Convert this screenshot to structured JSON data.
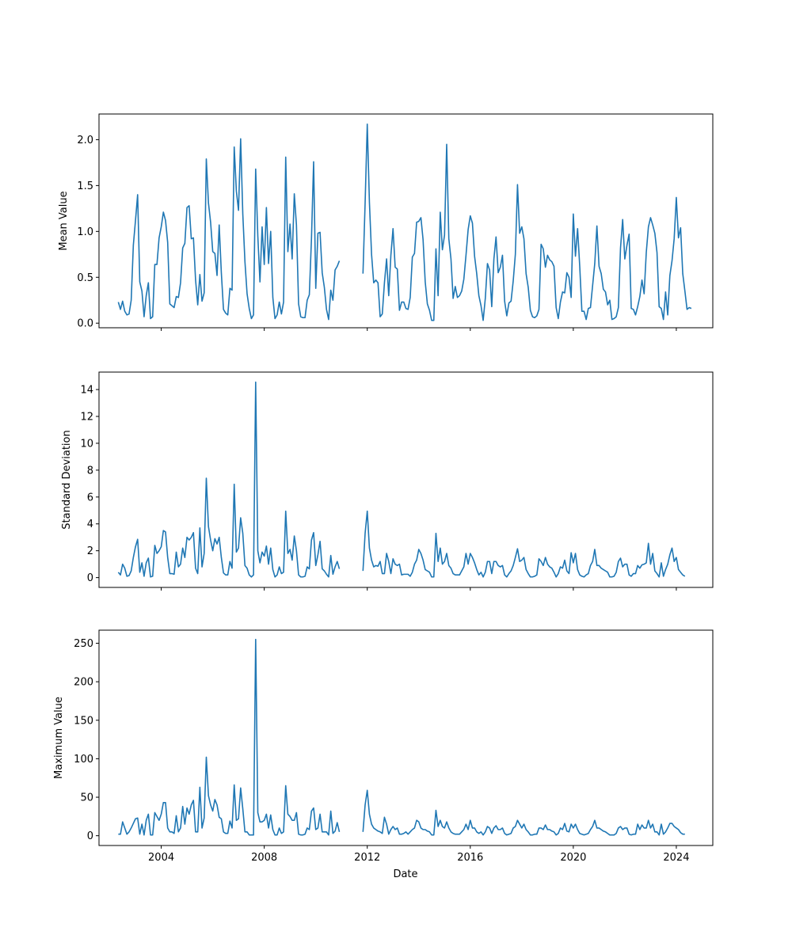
{
  "colors": {
    "line": "#1f77b4",
    "frame": "#000000",
    "background": "#ffffff"
  },
  "chart_data": [
    {
      "type": "line",
      "ylabel": "Mean Value",
      "xlabel": "",
      "xlim": [
        "2001-08-01",
        "2025-06-01"
      ],
      "ylim": [
        -0.05,
        2.28
      ],
      "yticks": [
        0.0,
        0.5,
        1.0,
        1.5,
        2.0
      ],
      "ytick_labels": [
        "0.0",
        "0.5",
        "1.0",
        "1.5",
        "2.0"
      ],
      "xticks": [
        "2004-01-01",
        "2008-01-01",
        "2012-01-01",
        "2016-01-01",
        "2020-01-01",
        "2024-01-01"
      ],
      "xtick_labels": [],
      "grid": false,
      "series": [
        {
          "x_start": "2002-05-01",
          "segments": [
            {
              "start_month": 0,
              "values": [
                0.23,
                0.15,
                0.24,
                0.13,
                0.09,
                0.1,
                0.25,
                0.85,
                1.12,
                1.4,
                0.45,
                0.35,
                0.07,
                0.3,
                0.44,
                0.05,
                0.07,
                0.64,
                0.64,
                0.93,
                1.05,
                1.21,
                1.12,
                0.88,
                0.21,
                0.19,
                0.17,
                0.29,
                0.28,
                0.44,
                0.82,
                0.87,
                1.26,
                1.28,
                0.92,
                0.93,
                0.47,
                0.2,
                0.53,
                0.24,
                0.33,
                1.79,
                1.31,
                1.1,
                0.78,
                0.76,
                0.52,
                1.07,
                0.55,
                0.15,
                0.11,
                0.09,
                0.38,
                0.36,
                1.92,
                1.44,
                1.23,
                2.01,
                1.19,
                0.67,
                0.32,
                0.16,
                0.05,
                0.09,
                1.68,
                0.95,
                0.45,
                1.05,
                0.64,
                1.26,
                0.65,
                1.0,
                0.28,
                0.05,
                0.09,
                0.23,
                0.1,
                0.23,
                1.81,
                0.78,
                1.08,
                0.7,
                1.41,
                1.07,
                0.21,
                0.07,
                0.06,
                0.06,
                0.25,
                0.31,
                0.92,
                1.76,
                0.38,
                0.98,
                0.99,
                0.55,
                0.39,
                0.15,
                0.04,
                0.36,
                0.25,
                0.58,
                0.62,
                0.68
              ]
            },
            {
              "start_month": 114,
              "values": [
                0.54,
                1.31,
                2.17,
                1.32,
                0.75,
                0.44,
                0.47,
                0.44,
                0.07,
                0.1,
                0.44,
                0.7,
                0.3,
                0.74,
                1.03,
                0.61,
                0.59,
                0.14,
                0.23,
                0.23,
                0.16,
                0.15,
                0.28,
                0.72,
                0.76,
                1.1,
                1.11,
                1.15,
                0.91,
                0.45,
                0.21,
                0.14,
                0.03,
                0.03,
                0.81,
                0.3,
                1.21,
                0.8,
                0.96,
                1.95,
                0.92,
                0.7,
                0.27,
                0.4,
                0.28,
                0.3,
                0.35,
                0.48,
                0.74,
                1.02,
                1.17,
                1.09,
                0.73,
                0.54,
                0.3,
                0.19,
                0.03,
                0.27,
                0.65,
                0.58,
                0.18,
                0.7,
                0.94,
                0.55,
                0.61,
                0.74,
                0.24,
                0.08,
                0.22,
                0.24,
                0.46,
                0.75,
                1.51,
                0.98,
                1.05,
                0.92,
                0.54,
                0.39,
                0.14,
                0.07,
                0.06,
                0.08,
                0.15,
                0.86,
                0.81,
                0.61,
                0.74,
                0.69,
                0.67,
                0.62,
                0.17,
                0.05,
                0.23,
                0.34,
                0.33,
                0.55,
                0.5,
                0.28,
                1.19,
                0.73,
                1.03,
                0.62,
                0.13,
                0.13,
                0.04,
                0.16,
                0.17,
                0.41,
                0.65,
                1.06,
                0.62,
                0.54,
                0.37,
                0.34,
                0.2,
                0.25,
                0.04,
                0.05,
                0.07,
                0.17,
                0.82,
                1.13,
                0.7,
                0.85,
                0.97,
                0.16,
                0.15,
                0.09,
                0.18,
                0.29,
                0.47,
                0.32,
                0.77,
                1.05,
                1.15,
                1.07,
                0.98,
                0.77,
                0.18,
                0.16,
                0.04,
                0.34,
                0.09,
                0.52,
                0.68,
                0.92,
                1.37,
                0.93,
                1.04,
                0.54,
                0.35,
                0.15,
                0.17,
                0.16
              ]
            }
          ]
        }
      ]
    },
    {
      "type": "line",
      "ylabel": "Standard Deviation",
      "xlabel": "",
      "xlim": [
        "2001-08-01",
        "2025-06-01"
      ],
      "ylim": [
        -0.73,
        15.3
      ],
      "yticks": [
        0,
        2,
        4,
        6,
        8,
        10,
        12,
        14
      ],
      "ytick_labels": [
        "0",
        "2",
        "4",
        "6",
        "8",
        "10",
        "12",
        "14"
      ],
      "xticks": [
        "2004-01-01",
        "2008-01-01",
        "2012-01-01",
        "2016-01-01",
        "2020-01-01",
        "2024-01-01"
      ],
      "xtick_labels": [],
      "grid": false,
      "series": [
        {
          "x_start": "2002-05-01",
          "segments": [
            {
              "start_month": 0,
              "values": [
                0.4,
                0.2,
                1.0,
                0.7,
                0.1,
                0.15,
                0.5,
                1.5,
                2.3,
                2.85,
                0.4,
                1.1,
                0.1,
                1.1,
                1.45,
                0.05,
                0.1,
                2.4,
                1.8,
                2.0,
                2.3,
                3.5,
                3.4,
                1.5,
                0.3,
                0.3,
                0.25,
                1.9,
                0.8,
                1.0,
                2.2,
                1.5,
                3.0,
                2.8,
                3.0,
                3.35,
                0.7,
                0.3,
                3.7,
                0.8,
                1.8,
                7.4,
                3.8,
                2.8,
                2.0,
                2.9,
                2.5,
                3.0,
                1.5,
                0.35,
                0.2,
                0.2,
                1.2,
                0.7,
                6.95,
                1.9,
                2.2,
                4.45,
                3.3,
                0.9,
                0.7,
                0.2,
                0.05,
                0.2,
                14.55,
                2.0,
                1.1,
                1.9,
                1.6,
                2.35,
                1.0,
                2.2,
                0.6,
                0.05,
                0.2,
                0.8,
                0.3,
                0.4,
                4.95,
                1.8,
                2.1,
                1.3,
                3.1,
                2.0,
                0.2,
                0.05,
                0.05,
                0.1,
                0.8,
                0.65,
                2.8,
                3.35,
                0.9,
                1.7,
                2.7,
                0.65,
                0.5,
                0.25,
                0.05,
                1.65,
                0.25,
                0.8,
                1.2,
                0.65
              ]
            },
            {
              "start_month": 114,
              "values": [
                0.5,
                3.3,
                4.95,
                2.2,
                1.3,
                0.8,
                0.9,
                0.85,
                1.2,
                0.3,
                0.3,
                1.8,
                1.2,
                0.3,
                1.4,
                1.0,
                0.9,
                1.0,
                0.2,
                0.25,
                0.25,
                0.25,
                0.1,
                0.4,
                1.0,
                1.3,
                2.1,
                1.8,
                1.3,
                0.6,
                0.5,
                0.4,
                0.05,
                0.05,
                3.3,
                1.2,
                2.2,
                1.0,
                1.2,
                1.8,
                0.9,
                0.7,
                0.3,
                0.2,
                0.2,
                0.2,
                0.5,
                0.8,
                1.8,
                1.0,
                1.8,
                1.5,
                1.1,
                0.6,
                0.2,
                0.4,
                0.05,
                0.4,
                1.2,
                1.2,
                0.3,
                1.2,
                1.2,
                0.9,
                0.8,
                0.9,
                0.2,
                0.05,
                0.3,
                0.5,
                0.9,
                1.5,
                2.15,
                1.2,
                1.3,
                1.5,
                0.6,
                0.3,
                0.05,
                0.05,
                0.1,
                0.2,
                1.4,
                1.2,
                0.9,
                1.5,
                1.0,
                0.8,
                0.7,
                0.4,
                0.05,
                0.3,
                0.8,
                0.7,
                1.3,
                0.5,
                0.3,
                1.85,
                1.1,
                1.8,
                0.6,
                0.2,
                0.1,
                0.05,
                0.2,
                0.3,
                0.9,
                1.2,
                2.1,
                0.9,
                0.9,
                0.7,
                0.6,
                0.5,
                0.4,
                0.05,
                0.05,
                0.1,
                0.4,
                1.2,
                1.45,
                0.8,
                1.0,
                1.0,
                0.2,
                0.1,
                0.3,
                0.3,
                0.9,
                0.7,
                0.95,
                1.0,
                1.1,
                2.55,
                1.0,
                1.8,
                0.5,
                0.3,
                0.05,
                1.1,
                0.1,
                0.6,
                1.0,
                1.7,
                2.2,
                1.2,
                1.5,
                0.6,
                0.4,
                0.2,
                0.1
              ]
            }
          ]
        }
      ]
    },
    {
      "type": "line",
      "ylabel": "Maximum Value",
      "xlabel": "Date",
      "xlim": [
        "2001-08-01",
        "2025-06-01"
      ],
      "ylim": [
        -12.7,
        267.0
      ],
      "yticks": [
        0,
        50,
        100,
        150,
        200,
        250
      ],
      "ytick_labels": [
        "0",
        "50",
        "100",
        "150",
        "200",
        "250"
      ],
      "xticks": [
        "2004-01-01",
        "2008-01-01",
        "2012-01-01",
        "2016-01-01",
        "2020-01-01",
        "2024-01-01"
      ],
      "xtick_labels": [
        "2004",
        "2008",
        "2012",
        "2016",
        "2020",
        "2024"
      ],
      "grid": false,
      "series": [
        {
          "x_start": "2002-05-01",
          "segments": [
            {
              "start_month": 0,
              "values": [
                2,
                2,
                18,
                10,
                2,
                5,
                10,
                16,
                22,
                23,
                2,
                15,
                1,
                20,
                28,
                1,
                1,
                30,
                25,
                20,
                28,
                43,
                43,
                10,
                5,
                5,
                3,
                26,
                5,
                10,
                38,
                15,
                36,
                28,
                40,
                46,
                5,
                5,
                63,
                10,
                23,
                102,
                52,
                40,
                32,
                47,
                40,
                24,
                22,
                5,
                3,
                3,
                19,
                10,
                66,
                20,
                22,
                62,
                35,
                5,
                5,
                1,
                1,
                1,
                255,
                30,
                18,
                18,
                20,
                28,
                10,
                27,
                8,
                1,
                1,
                10,
                3,
                5,
                65,
                28,
                25,
                20,
                20,
                30,
                2,
                1,
                1,
                2,
                10,
                8,
                32,
                36,
                8,
                10,
                28,
                5,
                5,
                5,
                1,
                32,
                3,
                6,
                17,
                5
              ]
            },
            {
              "start_month": 114,
              "values": [
                5,
                40,
                59,
                28,
                15,
                10,
                8,
                6,
                5,
                3,
                24,
                15,
                2,
                8,
                12,
                8,
                10,
                2,
                2,
                3,
                5,
                2,
                5,
                8,
                10,
                20,
                18,
                10,
                8,
                8,
                6,
                5,
                1,
                1,
                33,
                12,
                20,
                12,
                10,
                18,
                10,
                5,
                3,
                2,
                2,
                2,
                5,
                8,
                15,
                8,
                20,
                10,
                10,
                5,
                3,
                5,
                1,
                5,
                12,
                10,
                3,
                10,
                13,
                8,
                8,
                10,
                3,
                1,
                2,
                3,
                10,
                12,
                20,
                15,
                10,
                15,
                8,
                5,
                1,
                1,
                2,
                2,
                10,
                10,
                8,
                14,
                8,
                8,
                6,
                5,
                1,
                3,
                10,
                8,
                16,
                6,
                5,
                15,
                10,
                15,
                8,
                3,
                2,
                1,
                2,
                3,
                8,
                12,
                20,
                10,
                10,
                8,
                6,
                5,
                3,
                1,
                1,
                1,
                3,
                10,
                12,
                8,
                10,
                10,
                2,
                1,
                2,
                2,
                15,
                8,
                14,
                10,
                10,
                20,
                10,
                15,
                5,
                5,
                1,
                15,
                2,
                5,
                10,
                16,
                16,
                12,
                10,
                8,
                4,
                2,
                2
              ]
            }
          ]
        }
      ]
    }
  ]
}
